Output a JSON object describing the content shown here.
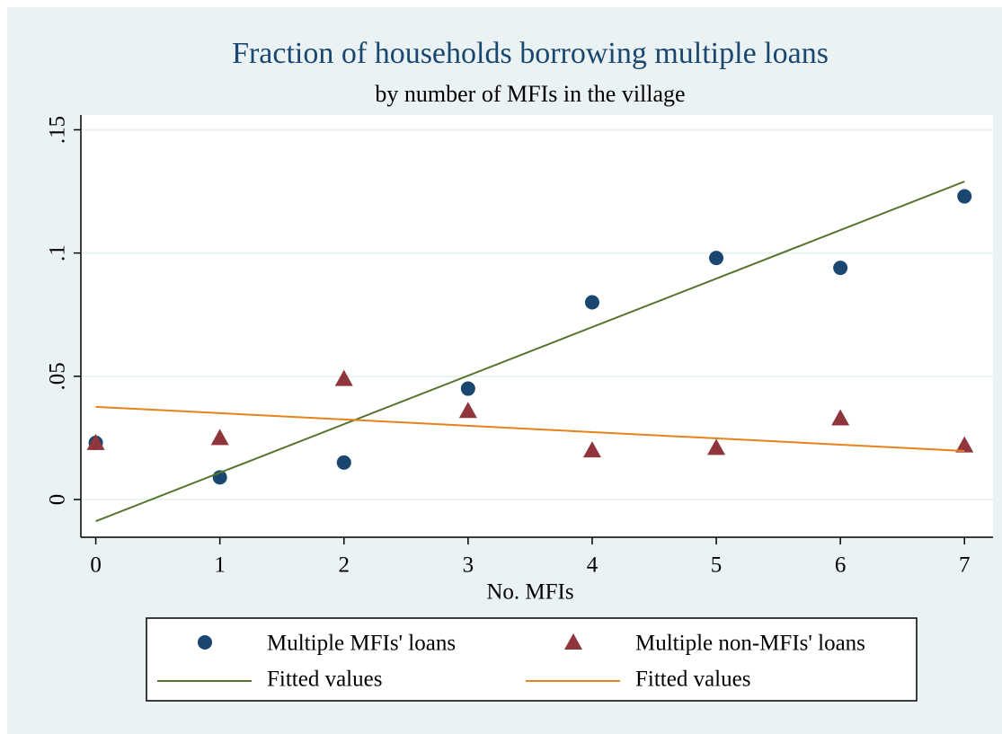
{
  "chart_data": {
    "type": "scatter",
    "title": "Fraction of households borrowing multiple loans",
    "subtitle": "by number of MFIs in the village",
    "xlabel": "No. MFIs",
    "xlim": [
      -0.12,
      7.23
    ],
    "xticks": [
      0,
      1,
      2,
      3,
      4,
      5,
      6,
      7
    ],
    "ylim": [
      -0.0153,
      0.156
    ],
    "yticks": [
      0,
      {
        "value": 0.05,
        "label": ".05"
      },
      {
        "value": 0.1,
        "label": ".1"
      },
      {
        "value": 0.15,
        "label": ".15"
      }
    ],
    "grid": true,
    "series": [
      {
        "name": "Multiple MFIs' loans",
        "type": "scatter",
        "marker": "circle",
        "color": "#1a476f",
        "x": [
          0,
          1,
          2,
          3,
          4,
          5,
          6,
          7
        ],
        "values": [
          0.023,
          0.009,
          0.015,
          0.045,
          0.08,
          0.098,
          0.094,
          0.123
        ]
      },
      {
        "name": "Multiple non-MFIs' loans",
        "type": "scatter",
        "marker": "triangle",
        "color": "#90353b",
        "x": [
          0,
          1,
          2,
          3,
          4,
          5,
          6,
          7
        ],
        "values": [
          0.023,
          0.025,
          0.049,
          0.036,
          0.02,
          0.021,
          0.033,
          0.022
        ]
      },
      {
        "name": "Fitted values",
        "type": "line",
        "color": "#55752f",
        "x": [
          0,
          7
        ],
        "values": [
          -0.0088,
          0.129
        ]
      },
      {
        "name": "Fitted values",
        "type": "line",
        "color": "#e8821a",
        "x": [
          0,
          7
        ],
        "values": [
          0.0376,
          0.0197
        ]
      }
    ]
  }
}
